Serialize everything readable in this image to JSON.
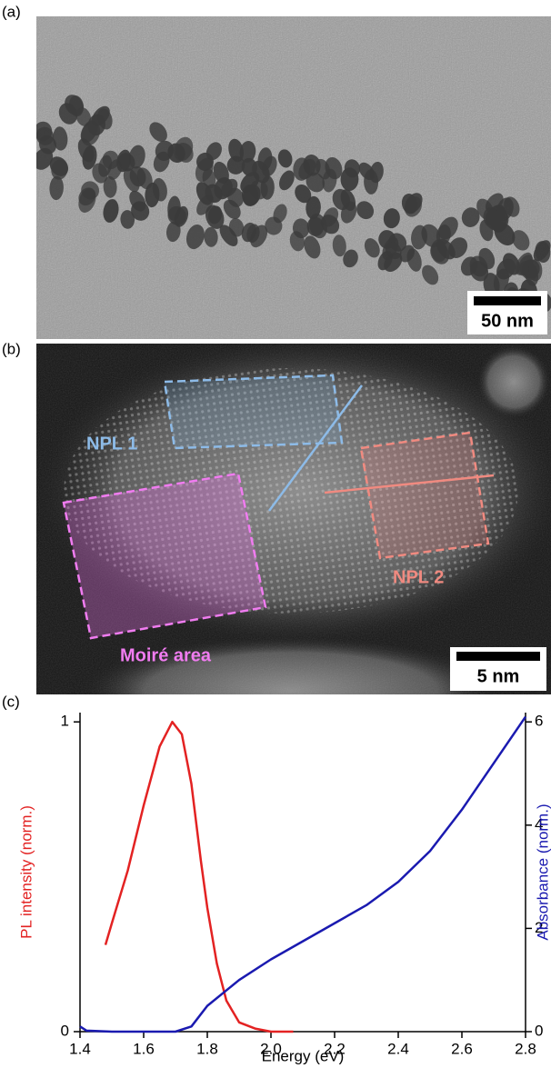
{
  "panel_a": {
    "label": "(a)",
    "scale_bar": "50 nm"
  },
  "panel_b": {
    "label": "(b)",
    "scale_bar": "5 nm",
    "annotations": {
      "npl1": "NPL 1",
      "npl2": "NPL 2",
      "moire": "Moiré area"
    }
  },
  "panel_c": {
    "label": "(c)"
  },
  "chart_data": {
    "type": "line",
    "xlabel": "Energy (eV)",
    "ylabel": "PL intensity (norm.)",
    "y2label": "Absorbance (norm.)",
    "xlim": [
      1.4,
      2.8
    ],
    "xticks": [
      1.4,
      1.6,
      1.8,
      {
        "value": 2.0,
        "label": "2.0"
      },
      2.2,
      2.4,
      2.6,
      2.8
    ],
    "ylim": [
      0,
      1.03
    ],
    "yticks": [
      0,
      1
    ],
    "y2lim": [
      0,
      6.18
    ],
    "y2ticks": [
      0,
      2,
      4,
      6
    ],
    "series": [
      {
        "name": "PL intensity (norm.)",
        "color": "#e32222",
        "x": [
          1.48,
          1.5,
          1.55,
          1.6,
          1.65,
          1.69,
          1.72,
          1.75,
          1.78,
          1.8,
          1.83,
          1.86,
          1.9,
          1.95,
          2.0,
          2.07
        ],
        "values": [
          0.28,
          0.35,
          0.52,
          0.73,
          0.92,
          1.0,
          0.96,
          0.8,
          0.55,
          0.4,
          0.22,
          0.1,
          0.03,
          0.01,
          0.0,
          0.0
        ]
      },
      {
        "name": "Absorbance (norm.)",
        "color": "#1a1ab0",
        "axis": "y2",
        "x": [
          1.4,
          1.42,
          1.5,
          1.6,
          1.7,
          1.75,
          1.8,
          1.9,
          2.0,
          2.1,
          2.2,
          2.3,
          2.4,
          2.5,
          2.6,
          2.7,
          2.8
        ],
        "values": [
          0.1,
          0.02,
          0.0,
          0.0,
          0.0,
          0.1,
          0.5,
          1.0,
          1.4,
          1.75,
          2.1,
          2.45,
          2.9,
          3.5,
          4.3,
          5.2,
          6.1
        ]
      }
    ]
  }
}
